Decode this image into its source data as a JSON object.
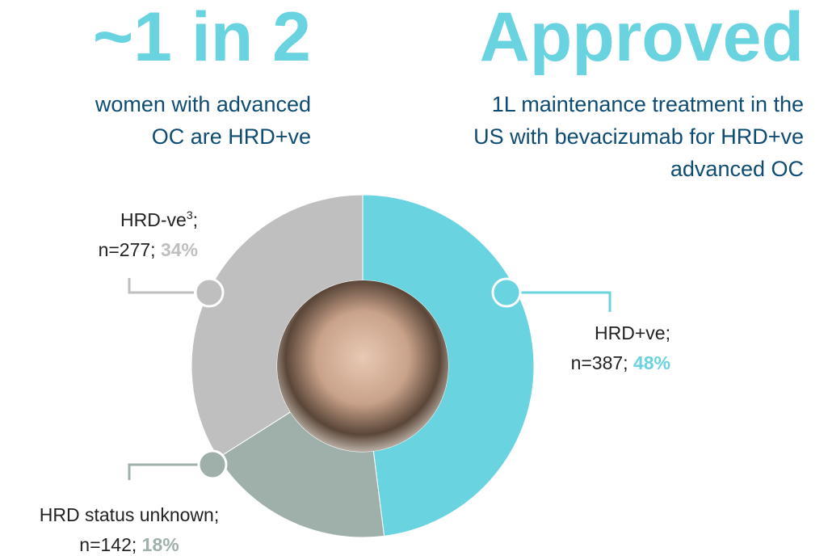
{
  "headlines": [
    {
      "title": "~1 in 2",
      "lines": [
        "women with advanced",
        "OC are HRD+ve"
      ]
    },
    {
      "title": "Approved",
      "lines": [
        "1L maintenance treatment in the",
        "US with bevacizumab for HRD+ve",
        "advanced OC"
      ]
    }
  ],
  "chart_data": {
    "type": "pie",
    "donut": true,
    "categories": [
      "HRD+ve",
      "HRD status unknown",
      "HRD-ve"
    ],
    "superscripts": [
      null,
      null,
      "3"
    ],
    "separator": ";",
    "count_labels": [
      "n=387",
      "n=142",
      "n=277"
    ],
    "values": [
      48,
      18,
      34
    ],
    "value_labels": [
      "48%",
      "18%",
      "34%"
    ],
    "colors": [
      "#6ad3e0",
      "#9fb0ab",
      "#bfbfbf"
    ],
    "label_colors": [
      "#6ad3e0",
      "#9fb0ab",
      "#bfbfbf"
    ]
  }
}
